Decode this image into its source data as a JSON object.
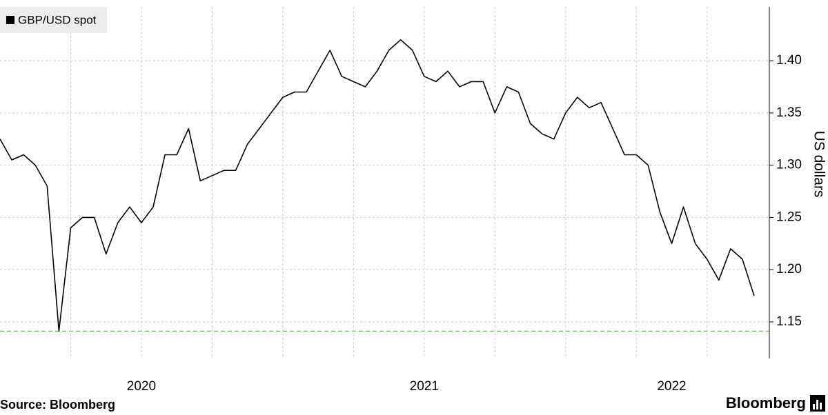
{
  "chart_data": {
    "type": "line",
    "categories": [
      null,
      null,
      null,
      null,
      null,
      null,
      null,
      null,
      null,
      null,
      null,
      null,
      "2020",
      null,
      null,
      null,
      null,
      null,
      null,
      null,
      null,
      null,
      null,
      null,
      null,
      null,
      null,
      null,
      null,
      null,
      null,
      null,
      null,
      null,
      null,
      null,
      "2021",
      null,
      null,
      null,
      null,
      null,
      null,
      null,
      null,
      null,
      null,
      null,
      null,
      null,
      null,
      null,
      null,
      null,
      null,
      null,
      null,
      "2022",
      null,
      null,
      null,
      null,
      null,
      null,
      null
    ],
    "series": [
      {
        "name": "GBP/USD spot",
        "color": "#000000",
        "values": [
          1.325,
          1.305,
          1.31,
          1.3,
          1.28,
          1.1412,
          1.24,
          1.25,
          1.25,
          1.215,
          1.245,
          1.26,
          1.245,
          1.26,
          1.31,
          1.31,
          1.335,
          1.285,
          1.29,
          1.295,
          1.295,
          1.32,
          1.335,
          1.35,
          1.365,
          1.37,
          1.37,
          1.39,
          1.41,
          1.385,
          1.38,
          1.375,
          1.39,
          1.41,
          1.42,
          1.41,
          1.385,
          1.38,
          1.39,
          1.375,
          1.38,
          1.38,
          1.35,
          1.375,
          1.37,
          1.34,
          1.33,
          1.325,
          1.35,
          1.365,
          1.355,
          1.36,
          1.335,
          1.31,
          1.31,
          1.3,
          1.255,
          1.225,
          1.26,
          1.225,
          1.21,
          1.19,
          1.22,
          1.21,
          1.175
        ]
      }
    ],
    "ylim": [
      1.115,
      1.4515
    ],
    "yticks": [
      1.15,
      {
        "value": 1.2,
        "label": "1.20"
      },
      1.25,
      {
        "value": 1.3,
        "label": "1.30"
      },
      1.35,
      {
        "value": 1.4,
        "label": "1.40"
      }
    ],
    "y_label": "US dollars",
    "reference_line": {
      "value": 1.1412,
      "color": "#33cc33"
    },
    "grid": true,
    "legend": "top-left",
    "source": "Source: Bloomberg",
    "logo": "Bloomberg"
  }
}
